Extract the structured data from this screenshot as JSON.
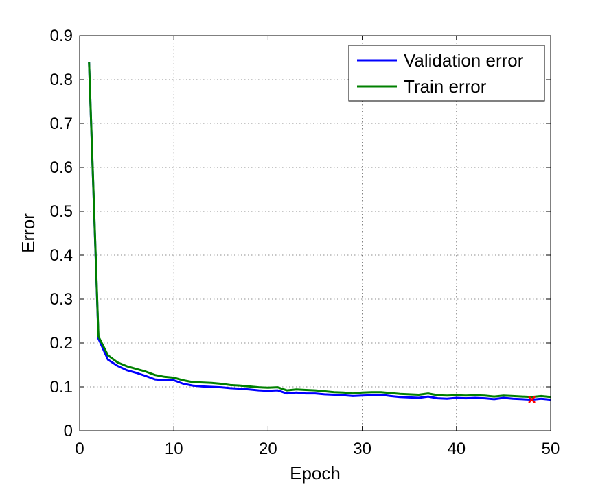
{
  "chart_data": {
    "type": "line",
    "title": "",
    "xlabel": "Epoch",
    "ylabel": "Error",
    "xlim": [
      0,
      50
    ],
    "ylim": [
      0,
      0.9
    ],
    "xticks": [
      0,
      10,
      20,
      30,
      40,
      50
    ],
    "yticks": [
      0,
      0.1,
      0.2,
      0.3,
      0.4,
      0.5,
      0.6,
      0.7,
      0.8,
      0.9
    ],
    "grid": true,
    "legend_position": "top-right",
    "x": [
      1,
      2,
      3,
      4,
      5,
      6,
      7,
      8,
      9,
      10,
      11,
      12,
      13,
      14,
      15,
      16,
      17,
      18,
      19,
      20,
      21,
      22,
      23,
      24,
      25,
      26,
      27,
      28,
      29,
      30,
      31,
      32,
      33,
      34,
      35,
      36,
      37,
      38,
      39,
      40,
      41,
      42,
      43,
      44,
      45,
      46,
      47,
      48,
      49,
      50
    ],
    "series": [
      {
        "name": "Validation error",
        "color": "#0000ff",
        "values": [
          0.84,
          0.21,
          0.162,
          0.148,
          0.138,
          0.132,
          0.125,
          0.117,
          0.115,
          0.115,
          0.107,
          0.103,
          0.101,
          0.1,
          0.099,
          0.097,
          0.096,
          0.094,
          0.092,
          0.091,
          0.092,
          0.085,
          0.087,
          0.085,
          0.085,
          0.083,
          0.082,
          0.081,
          0.079,
          0.08,
          0.081,
          0.082,
          0.079,
          0.077,
          0.076,
          0.075,
          0.078,
          0.074,
          0.073,
          0.075,
          0.074,
          0.075,
          0.074,
          0.072,
          0.075,
          0.073,
          0.072,
          0.071,
          0.073,
          0.071
        ]
      },
      {
        "name": "Train error",
        "color": "#008000",
        "values": [
          0.84,
          0.215,
          0.172,
          0.156,
          0.147,
          0.141,
          0.135,
          0.127,
          0.123,
          0.121,
          0.115,
          0.111,
          0.11,
          0.109,
          0.107,
          0.104,
          0.103,
          0.101,
          0.099,
          0.098,
          0.099,
          0.092,
          0.094,
          0.093,
          0.092,
          0.09,
          0.088,
          0.087,
          0.085,
          0.087,
          0.088,
          0.088,
          0.086,
          0.084,
          0.083,
          0.082,
          0.085,
          0.081,
          0.08,
          0.081,
          0.08,
          0.081,
          0.08,
          0.078,
          0.08,
          0.079,
          0.078,
          0.077,
          0.079,
          0.077
        ]
      }
    ],
    "marker": {
      "x": 48,
      "y": 0.071,
      "symbol": "x",
      "color": "#ff0000"
    }
  }
}
